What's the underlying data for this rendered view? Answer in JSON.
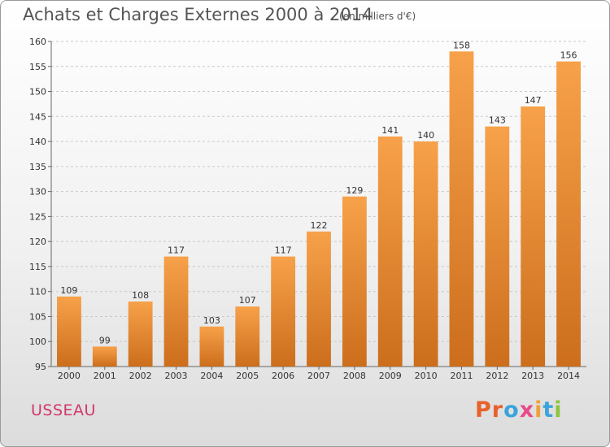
{
  "header": {
    "title": "Achats et Charges Externes 2000 à 2014",
    "unit": "(en milliers d'€)"
  },
  "footer": {
    "commune": "USSEAU",
    "logo": [
      "P",
      "r",
      "o",
      "x",
      "i",
      "t",
      "i"
    ],
    "logo_colors": [
      "#e8612c",
      "#e8612c",
      "#3aa3dc",
      "#e84a8a",
      "#f0a13a",
      "#3aa3dc",
      "#8cc63f"
    ]
  },
  "colors": {
    "bar_light": "#f7a14a",
    "bar_dark": "#cc6e1c",
    "grid": "#c8c8c8",
    "commune": "#d0386a"
  },
  "chart_data": {
    "type": "bar",
    "title": "Achats et Charges Externes 2000 à 2014",
    "categories": [
      "2000",
      "2001",
      "2002",
      "2003",
      "2004",
      "2005",
      "2006",
      "2007",
      "2008",
      "2009",
      "2010",
      "2011",
      "2012",
      "2013",
      "2014"
    ],
    "values": [
      109,
      99,
      108,
      117,
      103,
      107,
      117,
      122,
      129,
      141,
      140,
      158,
      143,
      147,
      156
    ],
    "ylim": [
      95,
      160
    ],
    "yticks": [
      95,
      100,
      105,
      110,
      115,
      120,
      125,
      130,
      135,
      140,
      145,
      150,
      155,
      160
    ],
    "grid": true,
    "xlabel": "",
    "ylabel": ""
  }
}
